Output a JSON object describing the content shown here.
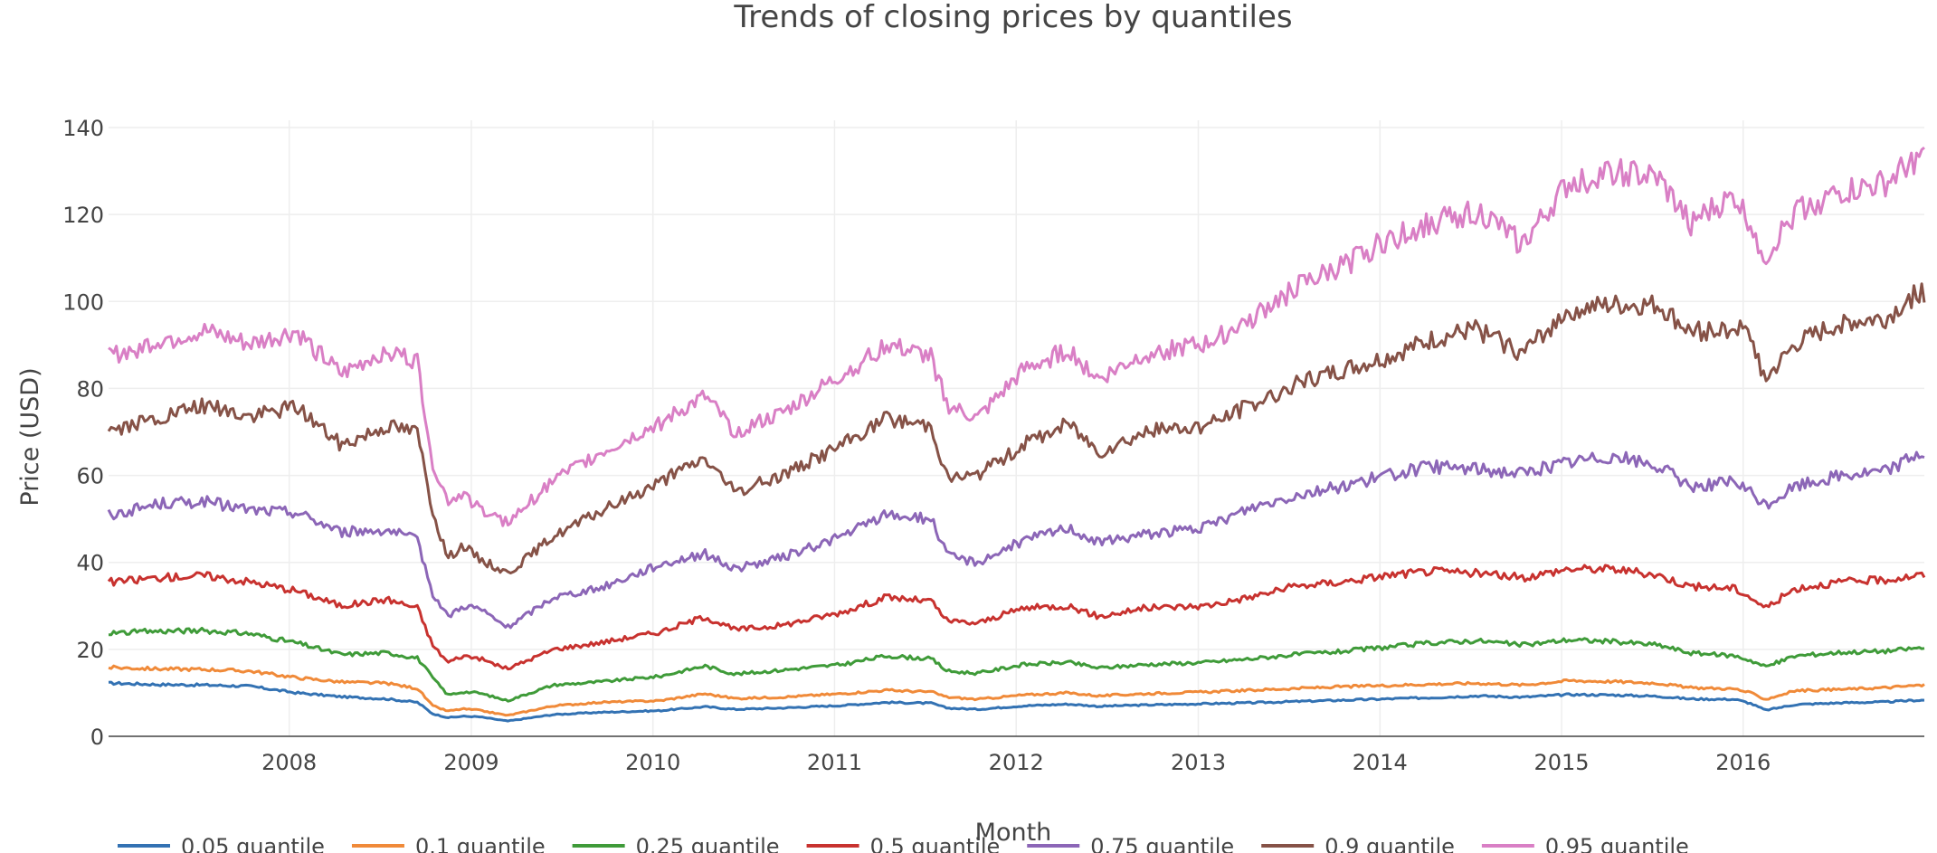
{
  "chart_data": {
    "type": "line",
    "title": "Trends of closing prices by quantiles",
    "xlabel": "Month",
    "ylabel": "Price (USD)",
    "x_range": [
      "2007-01-03",
      "2016-12-30"
    ],
    "ylim": [
      0,
      140
    ],
    "y_ticks": [
      0,
      20,
      40,
      60,
      80,
      100,
      120,
      140
    ],
    "x_tick_labels": [
      "2008",
      "2009",
      "2010",
      "2011",
      "2012",
      "2013",
      "2014",
      "2015",
      "2016"
    ],
    "grid": true,
    "legend_position": "bottom",
    "x": [
      "2007-01",
      "2007-04",
      "2007-07",
      "2007-10",
      "2008-01",
      "2008-04",
      "2008-07",
      "2008-09",
      "2008-10",
      "2008-11",
      "2008-12",
      "2009-01",
      "2009-03",
      "2009-06",
      "2009-09",
      "2010-01",
      "2010-04",
      "2010-06",
      "2010-09",
      "2011-01",
      "2011-04",
      "2011-07",
      "2011-08",
      "2011-10",
      "2012-01",
      "2012-04",
      "2012-06",
      "2012-09",
      "2013-01",
      "2013-04",
      "2013-07",
      "2013-10",
      "2014-01",
      "2014-04",
      "2014-07",
      "2014-10",
      "2015-01",
      "2015-04",
      "2015-07",
      "2015-09",
      "2015-12",
      "2016-01",
      "2016-02",
      "2016-04",
      "2016-07",
      "2016-10",
      "2016-12"
    ],
    "series": [
      {
        "name": "0.05 quantile",
        "color": "#3372b3",
        "values": [
          12.2,
          11.9,
          11.8,
          11.5,
          10,
          9.1,
          8.6,
          7.8,
          5.2,
          4.3,
          4.6,
          4.5,
          3.5,
          5,
          5.5,
          5.9,
          6.8,
          6.2,
          6.5,
          7.1,
          7.8,
          7.6,
          6.5,
          6.2,
          7,
          7.4,
          6.9,
          7.2,
          7.5,
          7.7,
          8,
          8.3,
          8.6,
          8.9,
          9.3,
          9,
          9.6,
          9.5,
          9.2,
          8.6,
          8.5,
          7.6,
          6,
          7.3,
          7.7,
          7.9,
          8.3
        ]
      },
      {
        "name": "0.1 quantile",
        "color": "#f08a39",
        "values": [
          15.8,
          15.5,
          15.4,
          15,
          13.5,
          12.5,
          12.2,
          11,
          7,
          5.8,
          6.3,
          6,
          4.8,
          7,
          7.8,
          8.2,
          9.8,
          8.7,
          9,
          9.8,
          10.6,
          10.2,
          9,
          8.5,
          9.5,
          10,
          9.3,
          9.8,
          10.2,
          10.6,
          11,
          11.4,
          11.7,
          12,
          12.2,
          11.8,
          12.8,
          12.6,
          12.2,
          11.2,
          10.9,
          10,
          8.5,
          10.5,
          10.8,
          11.2,
          11.7
        ]
      },
      {
        "name": "0.25 quantile",
        "color": "#3f9b39",
        "values": [
          23.8,
          24.2,
          24.3,
          23.6,
          21.5,
          18.8,
          19.2,
          18,
          13.5,
          9.5,
          10.2,
          10,
          8.2,
          11.8,
          12.5,
          13.8,
          16.2,
          14.3,
          15.2,
          16.5,
          18.5,
          17.8,
          15,
          14.5,
          16.5,
          17,
          15.7,
          16.5,
          17,
          17.8,
          18.8,
          19.5,
          20.5,
          21.5,
          22,
          21,
          22.2,
          21.8,
          21,
          19.2,
          18.5,
          17.5,
          16,
          18.5,
          19.3,
          19.6,
          20.3
        ]
      },
      {
        "name": "0.5 quantile",
        "color": "#c8322f",
        "values": [
          35.5,
          36.5,
          37,
          35.5,
          33.5,
          30,
          31.5,
          29.5,
          21,
          17,
          18.5,
          18,
          15.5,
          20,
          21.5,
          24,
          27.5,
          24.5,
          25.5,
          28.5,
          32,
          31,
          26.5,
          26,
          29.5,
          30,
          27.5,
          29.5,
          30,
          32,
          34.5,
          35.5,
          37,
          38,
          37.5,
          36.5,
          38.5,
          38.5,
          37,
          34.5,
          34,
          32,
          29.5,
          34,
          35.5,
          36,
          37
        ]
      },
      {
        "name": "0.75 quantile",
        "color": "#8c66b7",
        "values": [
          51,
          53.5,
          54,
          52,
          51.5,
          47,
          47.5,
          45,
          33,
          27.5,
          30,
          29.5,
          25,
          32,
          34,
          39.5,
          42,
          38.5,
          41,
          46,
          51,
          50,
          41.5,
          40,
          45,
          48,
          44.5,
          46.5,
          48,
          52.5,
          55.5,
          57.5,
          60,
          62,
          61.5,
          60.5,
          63,
          64.5,
          62,
          57.5,
          58.5,
          56,
          53,
          57.5,
          60,
          61,
          65
        ]
      },
      {
        "name": "0.9 quantile",
        "color": "#865247",
        "values": [
          70.5,
          73,
          76,
          73.5,
          76,
          67,
          71.5,
          70,
          52,
          41,
          44,
          41,
          37.5,
          46,
          51.5,
          58.5,
          64,
          56,
          60,
          67,
          73,
          71.5,
          59.5,
          60,
          67,
          72,
          65.5,
          70,
          71.5,
          76,
          81,
          84,
          87,
          91,
          93.5,
          88,
          98,
          99,
          99,
          93,
          94,
          92,
          82,
          90,
          95,
          96,
          102
        ]
      },
      {
        "name": "0.95 quantile",
        "color": "#d97fc5",
        "values": [
          87.5,
          91,
          93,
          90,
          93,
          83,
          89,
          86,
          63,
          54,
          56,
          52.5,
          49,
          59,
          65,
          72,
          78,
          70,
          74,
          83,
          90,
          87,
          76,
          73,
          84,
          89,
          82,
          88,
          90,
          96,
          103,
          108,
          114,
          118,
          121,
          113,
          127,
          130,
          128,
          118,
          124,
          118,
          110,
          121,
          125,
          127,
          133
        ]
      }
    ]
  }
}
